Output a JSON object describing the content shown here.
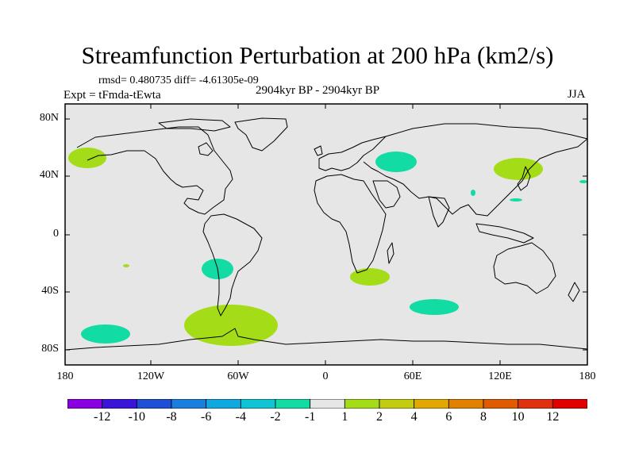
{
  "title": "Streamfunction Perturbation at 200 hPa (km2/s)",
  "stats": "rmsd= 0.480735 diff= -4.61305e-09",
  "experiment": "Expt = tFmda-tEwta",
  "period": "2904kyr BP - 2904kyr BP",
  "season": "JJA",
  "map": {
    "projection": "cylindrical-equidistant",
    "lat_labels": [
      "80N",
      "40N",
      "0",
      "40S",
      "80S"
    ],
    "lon_labels": [
      "180",
      "120W",
      "60W",
      "0",
      "60E",
      "120E",
      "180"
    ],
    "anomaly_regions": [
      {
        "name": "north-pacific",
        "lat": 53,
        "lon": -169,
        "level": "1..2"
      },
      {
        "name": "central-asia",
        "lat": 52,
        "lon": 49,
        "level": "-2..-1"
      },
      {
        "name": "east-asia",
        "lat": 45,
        "lon": 126,
        "level": "1..2"
      },
      {
        "name": "south-america",
        "lat": -24,
        "lon": -74,
        "level": "-2..-1"
      },
      {
        "name": "southern-africa",
        "lat": -29,
        "lon": 30,
        "level": "1..2"
      },
      {
        "name": "southern-indian-ocean",
        "lat": -49,
        "lon": 76,
        "level": "-2..-1"
      },
      {
        "name": "south-pacific",
        "lat": -67,
        "lon": -155,
        "level": "-2..-1"
      },
      {
        "name": "drake-passage",
        "lat": -63,
        "lon": -65,
        "level": "1..2"
      }
    ]
  },
  "colorbar": {
    "labels": [
      "-12",
      "-10",
      "-8",
      "-6",
      "-4",
      "-2",
      "-1",
      "1",
      "2",
      "4",
      "6",
      "8",
      "10",
      "12"
    ],
    "colors": [
      "#8a00e0",
      "#3a14d8",
      "#1e4fd6",
      "#1a7ede",
      "#10a8e0",
      "#10c4d4",
      "#12dca4",
      "#e6e6e6",
      "#a4dc18",
      "#c4cc10",
      "#e0a800",
      "#e08200",
      "#e05a00",
      "#e03010",
      "#e00000"
    ]
  }
}
